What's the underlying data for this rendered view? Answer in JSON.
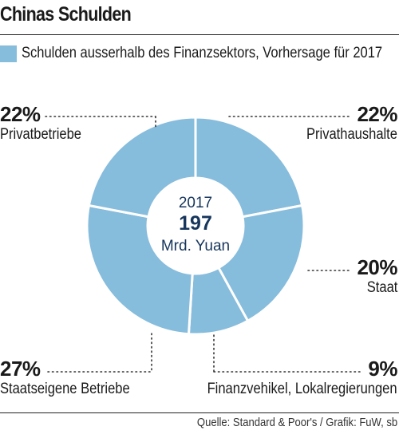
{
  "title": "Chinas Schulden",
  "legend": {
    "label": "Schulden ausserhalb des Finanzsektors, Vorhersage für 2017"
  },
  "center": {
    "year": "2017",
    "value": "197",
    "unit": "Mrd. Yuan"
  },
  "source": "Quelle: Standard & Poor's / Grafik: FuW, sb",
  "colors": {
    "slice": "#86bcdc",
    "separator": "#ffffff",
    "center_text": "#17365d",
    "text": "#1a1a1a"
  },
  "chart_data": {
    "type": "pie",
    "title": "Chinas Schulden",
    "subtitle": "Schulden ausserhalb des Finanzsektors, Vorhersage für 2017",
    "center_label": "2017 197 Mrd. Yuan",
    "slices": [
      {
        "label": "Privathaushalte",
        "value": 22,
        "display": "22%"
      },
      {
        "label": "Staat",
        "value": 20,
        "display": "20%"
      },
      {
        "label": "Finanzvehikel, Lokalregierungen",
        "value": 9,
        "display": "9%"
      },
      {
        "label": "Staatseigene Betriebe",
        "value": 27,
        "display": "27%"
      },
      {
        "label": "Privatbetriebe",
        "value": 22,
        "display": "22%"
      }
    ],
    "legend_placement": "top-left"
  }
}
